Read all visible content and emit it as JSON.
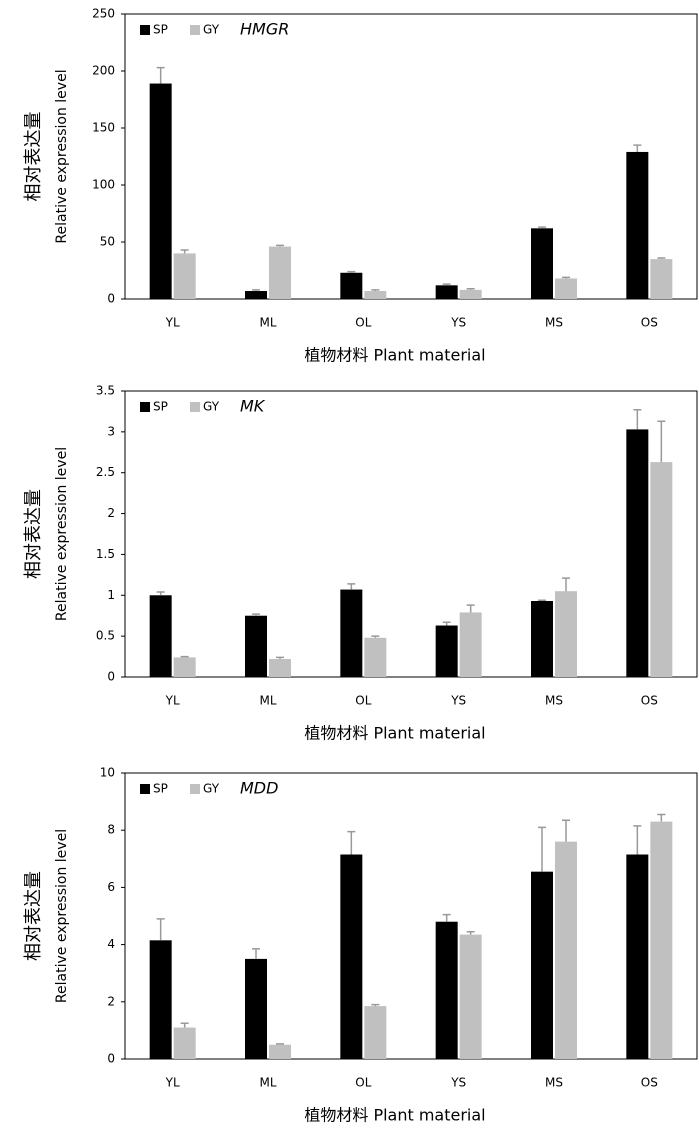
{
  "chart_data": [
    {
      "type": "bar",
      "title": "HMGR",
      "y_label": [
        "相对表达量",
        "Relative expression  level"
      ],
      "x_label": "植物材料 Plant material",
      "categories": [
        "YL",
        "ML",
        "OL",
        "YS",
        "MS",
        "OS"
      ],
      "series": [
        {
          "name": "SP",
          "color": "#000000",
          "values": [
            189,
            7,
            23,
            12,
            62,
            129
          ],
          "errors": [
            14,
            1,
            1,
            1,
            1,
            6
          ]
        },
        {
          "name": "GY",
          "color": "#c0c0c0",
          "values": [
            40,
            46,
            7,
            8,
            18,
            35
          ],
          "errors": [
            3,
            1,
            1,
            1,
            1,
            1
          ]
        }
      ],
      "ylim": [
        0,
        250
      ],
      "yticks": [
        0,
        50,
        100,
        150,
        200,
        250
      ]
    },
    {
      "type": "bar",
      "title": "MK",
      "y_label": [
        "相对表达量",
        "Relative expression  level"
      ],
      "x_label": "植物材料 Plant material",
      "categories": [
        "YL",
        "ML",
        "OL",
        "YS",
        "MS",
        "OS"
      ],
      "series": [
        {
          "name": "SP",
          "color": "#000000",
          "values": [
            1.0,
            0.75,
            1.07,
            0.63,
            0.93,
            3.03
          ],
          "errors": [
            0.04,
            0.02,
            0.07,
            0.04,
            0.01,
            0.24
          ]
        },
        {
          "name": "GY",
          "color": "#c0c0c0",
          "values": [
            0.24,
            0.22,
            0.48,
            0.79,
            1.05,
            2.63
          ],
          "errors": [
            0.01,
            0.02,
            0.02,
            0.09,
            0.16,
            0.5
          ]
        }
      ],
      "ylim": [
        0,
        3.5
      ],
      "yticks": [
        0,
        0.5,
        1,
        1.5,
        2,
        2.5,
        3,
        3.5
      ]
    },
    {
      "type": "bar",
      "title": "MDD",
      "y_label": [
        "相对表达量",
        "Relative expression  level"
      ],
      "x_label": "植物材料 Plant material",
      "categories": [
        "YL",
        "ML",
        "OL",
        "YS",
        "MS",
        "OS"
      ],
      "series": [
        {
          "name": "SP",
          "color": "#000000",
          "values": [
            4.15,
            3.5,
            7.15,
            4.8,
            6.55,
            7.15
          ],
          "errors": [
            0.75,
            0.35,
            0.8,
            0.25,
            1.55,
            1.0
          ]
        },
        {
          "name": "GY",
          "color": "#c0c0c0",
          "values": [
            1.1,
            0.5,
            1.85,
            4.35,
            7.6,
            8.3
          ],
          "errors": [
            0.15,
            0.03,
            0.05,
            0.1,
            0.75,
            0.25
          ]
        }
      ],
      "ylim": [
        0,
        10
      ],
      "yticks": [
        0,
        2,
        4,
        6,
        8,
        10
      ]
    }
  ]
}
